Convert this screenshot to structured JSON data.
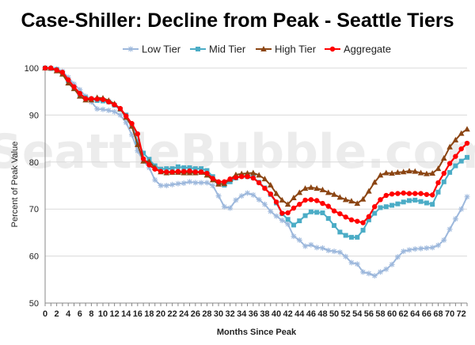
{
  "watermark": "SeattleBubble.com",
  "colors": {
    "low": "#9db8dc",
    "mid": "#4bacc6",
    "high": "#8b4513",
    "aggregate": "#ff0000"
  },
  "chart_data": {
    "type": "line",
    "title": "Case-Shiller: Decline from Peak - Seattle Tiers",
    "xlabel": "Months Since Peak",
    "ylabel": "Percent of Peak Value",
    "xlim": [
      0,
      73
    ],
    "ylim": [
      50,
      100
    ],
    "yticks": [
      50,
      60,
      70,
      80,
      90,
      100
    ],
    "xticks": [
      0,
      2,
      4,
      6,
      8,
      10,
      12,
      14,
      16,
      18,
      20,
      22,
      24,
      26,
      28,
      30,
      32,
      34,
      36,
      38,
      40,
      42,
      44,
      46,
      48,
      50,
      52,
      54,
      56,
      58,
      60,
      62,
      64,
      66,
      68,
      70,
      72
    ],
    "grid": "horizontal",
    "legend": "top",
    "x": [
      0,
      1,
      2,
      3,
      4,
      5,
      6,
      7,
      8,
      9,
      10,
      11,
      12,
      13,
      14,
      15,
      16,
      17,
      18,
      19,
      20,
      21,
      22,
      23,
      24,
      25,
      26,
      27,
      28,
      29,
      30,
      31,
      32,
      33,
      34,
      35,
      36,
      37,
      38,
      39,
      40,
      41,
      42,
      43,
      44,
      45,
      46,
      47,
      48,
      49,
      50,
      51,
      52,
      53,
      54,
      55,
      56,
      57,
      58,
      59,
      60,
      61,
      62,
      63,
      64,
      65,
      66,
      67,
      68,
      69,
      70,
      71,
      72,
      73
    ],
    "series": [
      {
        "name": "Low Tier",
        "key": "low",
        "marker": "star",
        "values": [
          100,
          100,
          99.8,
          99.3,
          98.0,
          96.6,
          95.4,
          94.0,
          92.8,
          91.3,
          91.2,
          91.0,
          90.7,
          90.0,
          88.4,
          85.8,
          82.4,
          80.2,
          78.8,
          76.2,
          75.0,
          75.0,
          75.2,
          75.4,
          75.5,
          75.8,
          75.6,
          75.6,
          75.6,
          75.0,
          72.8,
          70.5,
          70.2,
          71.9,
          72.8,
          73.4,
          73.0,
          72.0,
          71.0,
          69.5,
          68.5,
          67.6,
          66.8,
          64.2,
          63.4,
          62.1,
          62.4,
          61.8,
          61.7,
          61.2,
          61.0,
          60.8,
          59.9,
          58.6,
          58.3,
          56.6,
          56.3,
          55.8,
          56.6,
          57.2,
          58.2,
          59.8,
          61.0,
          61.3,
          61.5,
          61.6,
          61.7,
          61.8,
          62.3,
          63.4,
          65.7,
          67.9,
          70.0,
          72.6
        ]
      },
      {
        "name": "Mid Tier",
        "key": "mid",
        "marker": "square",
        "values": [
          100,
          99.9,
          99.7,
          98.9,
          97.3,
          95.8,
          94.5,
          93.7,
          93.4,
          93.1,
          93.0,
          92.8,
          92.1,
          91.2,
          90.0,
          88.0,
          84.3,
          81.9,
          80.6,
          79.2,
          78.5,
          78.6,
          78.6,
          79.0,
          78.8,
          78.8,
          78.6,
          78.6,
          78.2,
          76.9,
          75.6,
          75.1,
          75.8,
          76.6,
          77.0,
          76.9,
          76.7,
          75.7,
          74.5,
          73.1,
          71.3,
          69.0,
          67.8,
          66.6,
          67.5,
          68.6,
          69.4,
          69.3,
          69.2,
          68.0,
          66.5,
          65.1,
          64.4,
          64.0,
          64.0,
          65.5,
          67.7,
          69.1,
          70.3,
          70.5,
          70.8,
          71.1,
          71.5,
          71.8,
          71.9,
          71.6,
          71.3,
          71.0,
          73.6,
          75.8,
          77.8,
          79.2,
          80.2,
          81.0
        ]
      },
      {
        "name": "High Tier",
        "key": "high",
        "marker": "triangle",
        "values": [
          100,
          100,
          99.4,
          98.7,
          96.8,
          95.6,
          94.0,
          93.2,
          93.2,
          93.7,
          93.6,
          93.1,
          92.4,
          91.3,
          89.5,
          87.6,
          83.7,
          80.2,
          80.1,
          78.8,
          77.9,
          77.7,
          77.8,
          77.8,
          77.7,
          77.7,
          77.7,
          77.8,
          77.2,
          76.2,
          75.3,
          75.4,
          76.3,
          77.3,
          77.5,
          77.6,
          77.7,
          77.2,
          76.4,
          75.1,
          73.3,
          71.9,
          71.0,
          72.4,
          73.5,
          74.4,
          74.6,
          74.4,
          74.1,
          73.5,
          73.1,
          72.5,
          72.0,
          71.7,
          71.2,
          72.1,
          73.8,
          75.7,
          77.2,
          77.7,
          77.6,
          77.8,
          77.9,
          78.1,
          78.0,
          77.7,
          77.5,
          77.6,
          78.6,
          80.8,
          83.2,
          84.7,
          86.1,
          87.0
        ]
      },
      {
        "name": "Aggregate",
        "key": "aggregate",
        "marker": "circle",
        "values": [
          100,
          100,
          99.6,
          99.1,
          97.5,
          96.0,
          94.6,
          93.5,
          93.5,
          93.4,
          93.3,
          92.8,
          92.2,
          91.4,
          89.8,
          88.2,
          86.0,
          80.7,
          79.4,
          78.5,
          78.0,
          77.9,
          77.9,
          78.0,
          78.0,
          78.1,
          77.9,
          77.9,
          77.6,
          76.5,
          75.8,
          75.8,
          76.4,
          76.7,
          76.9,
          76.9,
          76.6,
          75.6,
          74.4,
          73.2,
          71.5,
          69.1,
          69.2,
          70.2,
          71.0,
          71.9,
          72.0,
          71.8,
          71.2,
          70.6,
          69.6,
          69.0,
          68.3,
          67.7,
          67.4,
          67.1,
          68.4,
          70.5,
          72.0,
          72.9,
          73.2,
          73.3,
          73.4,
          73.3,
          73.3,
          73.3,
          73.1,
          73.0,
          75.6,
          77.6,
          79.7,
          81.2,
          82.8,
          84.0
        ]
      }
    ]
  }
}
